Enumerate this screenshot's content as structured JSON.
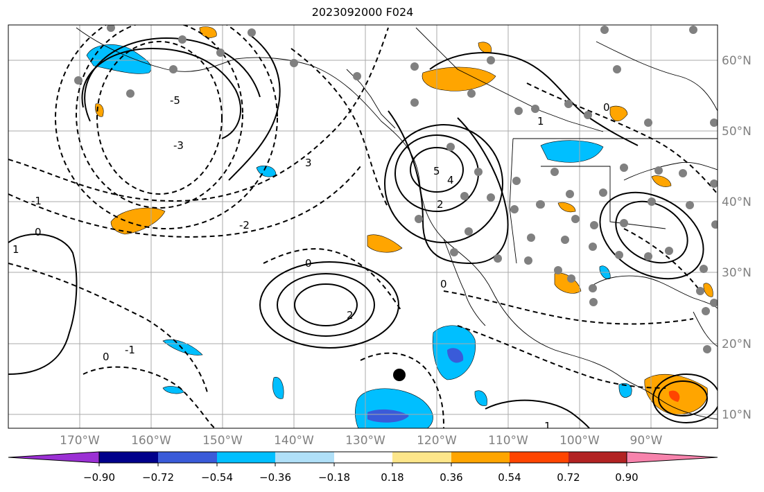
{
  "map": {
    "title": "2023092000 F024",
    "lon_ticks": [
      "170°W",
      "160°W",
      "150°W",
      "140°W",
      "130°W",
      "120°W",
      "110°W",
      "100°W",
      "90°W"
    ],
    "lat_ticks": [
      "60°N",
      "50°N",
      "40°N",
      "30°N",
      "20°N",
      "10°N"
    ],
    "contour_labels": [
      "0",
      "1",
      "2",
      "3",
      "4",
      "5",
      "-1",
      "-2",
      "-3",
      "-5"
    ],
    "extent": {
      "lon_min": -178,
      "lon_max": -78.5,
      "lat_min": 8,
      "lat_max": 64.5
    },
    "colors": {
      "background": "#ffffff",
      "grid": "#aaaaaa",
      "coast": "#000000",
      "station_dot": "#808080",
      "marker": "#000000",
      "tick_text": "#808080"
    }
  },
  "colorbar": {
    "ticks": [
      "−0.90",
      "−0.72",
      "−0.54",
      "−0.36",
      "−0.18",
      "0.18",
      "0.36",
      "0.54",
      "0.72",
      "0.90"
    ],
    "colors": [
      "#9b30d4",
      "#00008b",
      "#3a5bd9",
      "#00bfff",
      "#b0e0f8",
      "#ffffff",
      "#fde68a",
      "#ffa500",
      "#ff4500",
      "#b22222",
      "#f783ac"
    ]
  }
}
